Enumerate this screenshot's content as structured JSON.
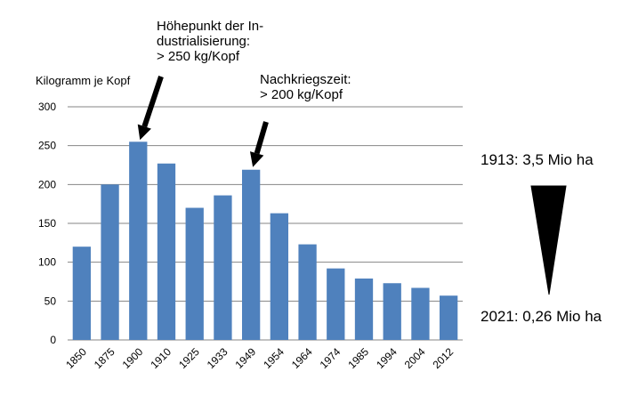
{
  "chart_data": {
    "type": "bar",
    "ylabel": "Kilogramm je Kopf",
    "ylim": [
      0,
      300
    ],
    "yticks": [
      0,
      50,
      100,
      150,
      200,
      250,
      300
    ],
    "grid": true,
    "categories": [
      "1850",
      "1875",
      "1900",
      "1910",
      "1925",
      "1933",
      "1949",
      "1954",
      "1964",
      "1974",
      "1985",
      "1994",
      "2004",
      "2012"
    ],
    "values": [
      120,
      200,
      255,
      227,
      170,
      186,
      219,
      163,
      123,
      92,
      79,
      73,
      67,
      57
    ],
    "bar_color": "#4f81bd",
    "annotations": [
      {
        "category": "1900",
        "lines": [
          "Höhepunkt der In-",
          "dustrialisierung:",
          "> 250 kg/Kopf"
        ]
      },
      {
        "category": "1949",
        "lines": [
          "Nachkriegszeit:",
          "> 200 kg/Kopf"
        ]
      }
    ]
  },
  "side_panel": {
    "top_label": "1913: 3,5 Mio ha",
    "bottom_label": "2021: 0,26 Mio ha",
    "shape_icon": "downward-wedge"
  }
}
